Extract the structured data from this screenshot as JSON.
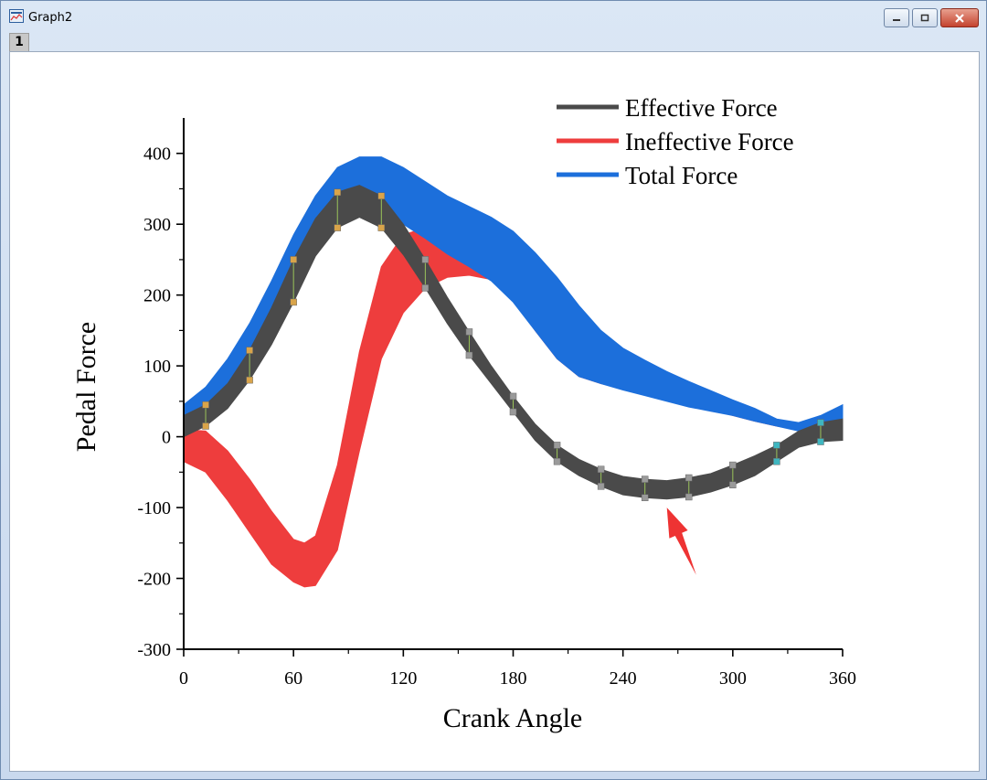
{
  "window": {
    "title": "Graph2",
    "layer_label": "1"
  },
  "colors": {
    "effective": "#4a4a4a",
    "ineffective": "#ee3d3d",
    "total": "#1c6fdb",
    "arrow": "#ee3333"
  },
  "chart_data": {
    "type": "area",
    "title": "",
    "xlabel": "Crank Angle",
    "ylabel": "Pedal Force",
    "xlim": [
      0,
      360
    ],
    "ylim": [
      -300,
      450
    ],
    "xticks": [
      0,
      60,
      120,
      180,
      240,
      300,
      360
    ],
    "yticks": [
      -300,
      -200,
      -100,
      0,
      100,
      200,
      300,
      400
    ],
    "legend_position": "top-right",
    "series": [
      {
        "name": "Effective Force",
        "color_key": "effective",
        "x": [
          0,
          12,
          24,
          36,
          48,
          60,
          72,
          84,
          96,
          108,
          120,
          132,
          144,
          156,
          168,
          180,
          192,
          204,
          216,
          228,
          240,
          252,
          264,
          276,
          288,
          300,
          312,
          324,
          336,
          348,
          360
        ],
        "lower": [
          0,
          15,
          40,
          80,
          130,
          190,
          255,
          295,
          310,
          295,
          257,
          210,
          160,
          115,
          75,
          35,
          -5,
          -35,
          -55,
          -70,
          -82,
          -86,
          -88,
          -85,
          -78,
          -68,
          -55,
          -35,
          -15,
          -7,
          -5
        ],
        "upper": [
          30,
          45,
          75,
          122,
          182,
          250,
          308,
          345,
          355,
          340,
          300,
          250,
          197,
          148,
          100,
          57,
          18,
          -12,
          -32,
          -46,
          -56,
          -60,
          -62,
          -58,
          -52,
          -40,
          -27,
          -12,
          8,
          20,
          25
        ]
      },
      {
        "name": "Ineffective Force",
        "color_key": "ineffective",
        "x": [
          0,
          12,
          24,
          36,
          48,
          60,
          66,
          72,
          84,
          96,
          108,
          120,
          132,
          144,
          156,
          168,
          180,
          192,
          204,
          216,
          228,
          240,
          252,
          264,
          276,
          288,
          300,
          312,
          324,
          336,
          348,
          360
        ],
        "lower": [
          -35,
          -50,
          -90,
          -135,
          -180,
          -205,
          -212,
          -210,
          -160,
          -20,
          110,
          175,
          210,
          225,
          228,
          222,
          195,
          150,
          110,
          85,
          75,
          68,
          60,
          52,
          44,
          38,
          30,
          22,
          15,
          10,
          8,
          6
        ],
        "upper": [
          10,
          8,
          -20,
          -60,
          -105,
          -145,
          -150,
          -140,
          -40,
          120,
          240,
          285,
          295,
          285,
          270,
          250,
          220,
          170,
          130,
          100,
          90,
          85,
          78,
          68,
          58,
          48,
          38,
          30,
          22,
          14,
          10,
          8
        ]
      },
      {
        "name": "Total Force",
        "color_key": "total",
        "x": [
          0,
          12,
          24,
          36,
          48,
          60,
          72,
          84,
          96,
          108,
          120,
          132,
          144,
          156,
          168,
          180,
          192,
          204,
          216,
          228,
          240,
          252,
          264,
          276,
          288,
          300,
          312,
          324,
          336,
          348,
          360
        ],
        "lower": [
          10,
          28,
          55,
          100,
          160,
          220,
          275,
          315,
          330,
          320,
          300,
          280,
          258,
          240,
          220,
          190,
          150,
          110,
          85,
          75,
          66,
          58,
          50,
          42,
          36,
          30,
          22,
          15,
          8,
          15,
          25
        ],
        "upper": [
          45,
          70,
          110,
          160,
          220,
          285,
          340,
          380,
          395,
          395,
          380,
          360,
          340,
          325,
          310,
          290,
          260,
          225,
          185,
          150,
          125,
          108,
          92,
          78,
          65,
          52,
          40,
          25,
          20,
          30,
          45
        ]
      }
    ],
    "annotations": [
      {
        "type": "arrow",
        "color_key": "arrow",
        "from": [
          280,
          -195
        ],
        "to": [
          264,
          -100
        ]
      }
    ]
  }
}
